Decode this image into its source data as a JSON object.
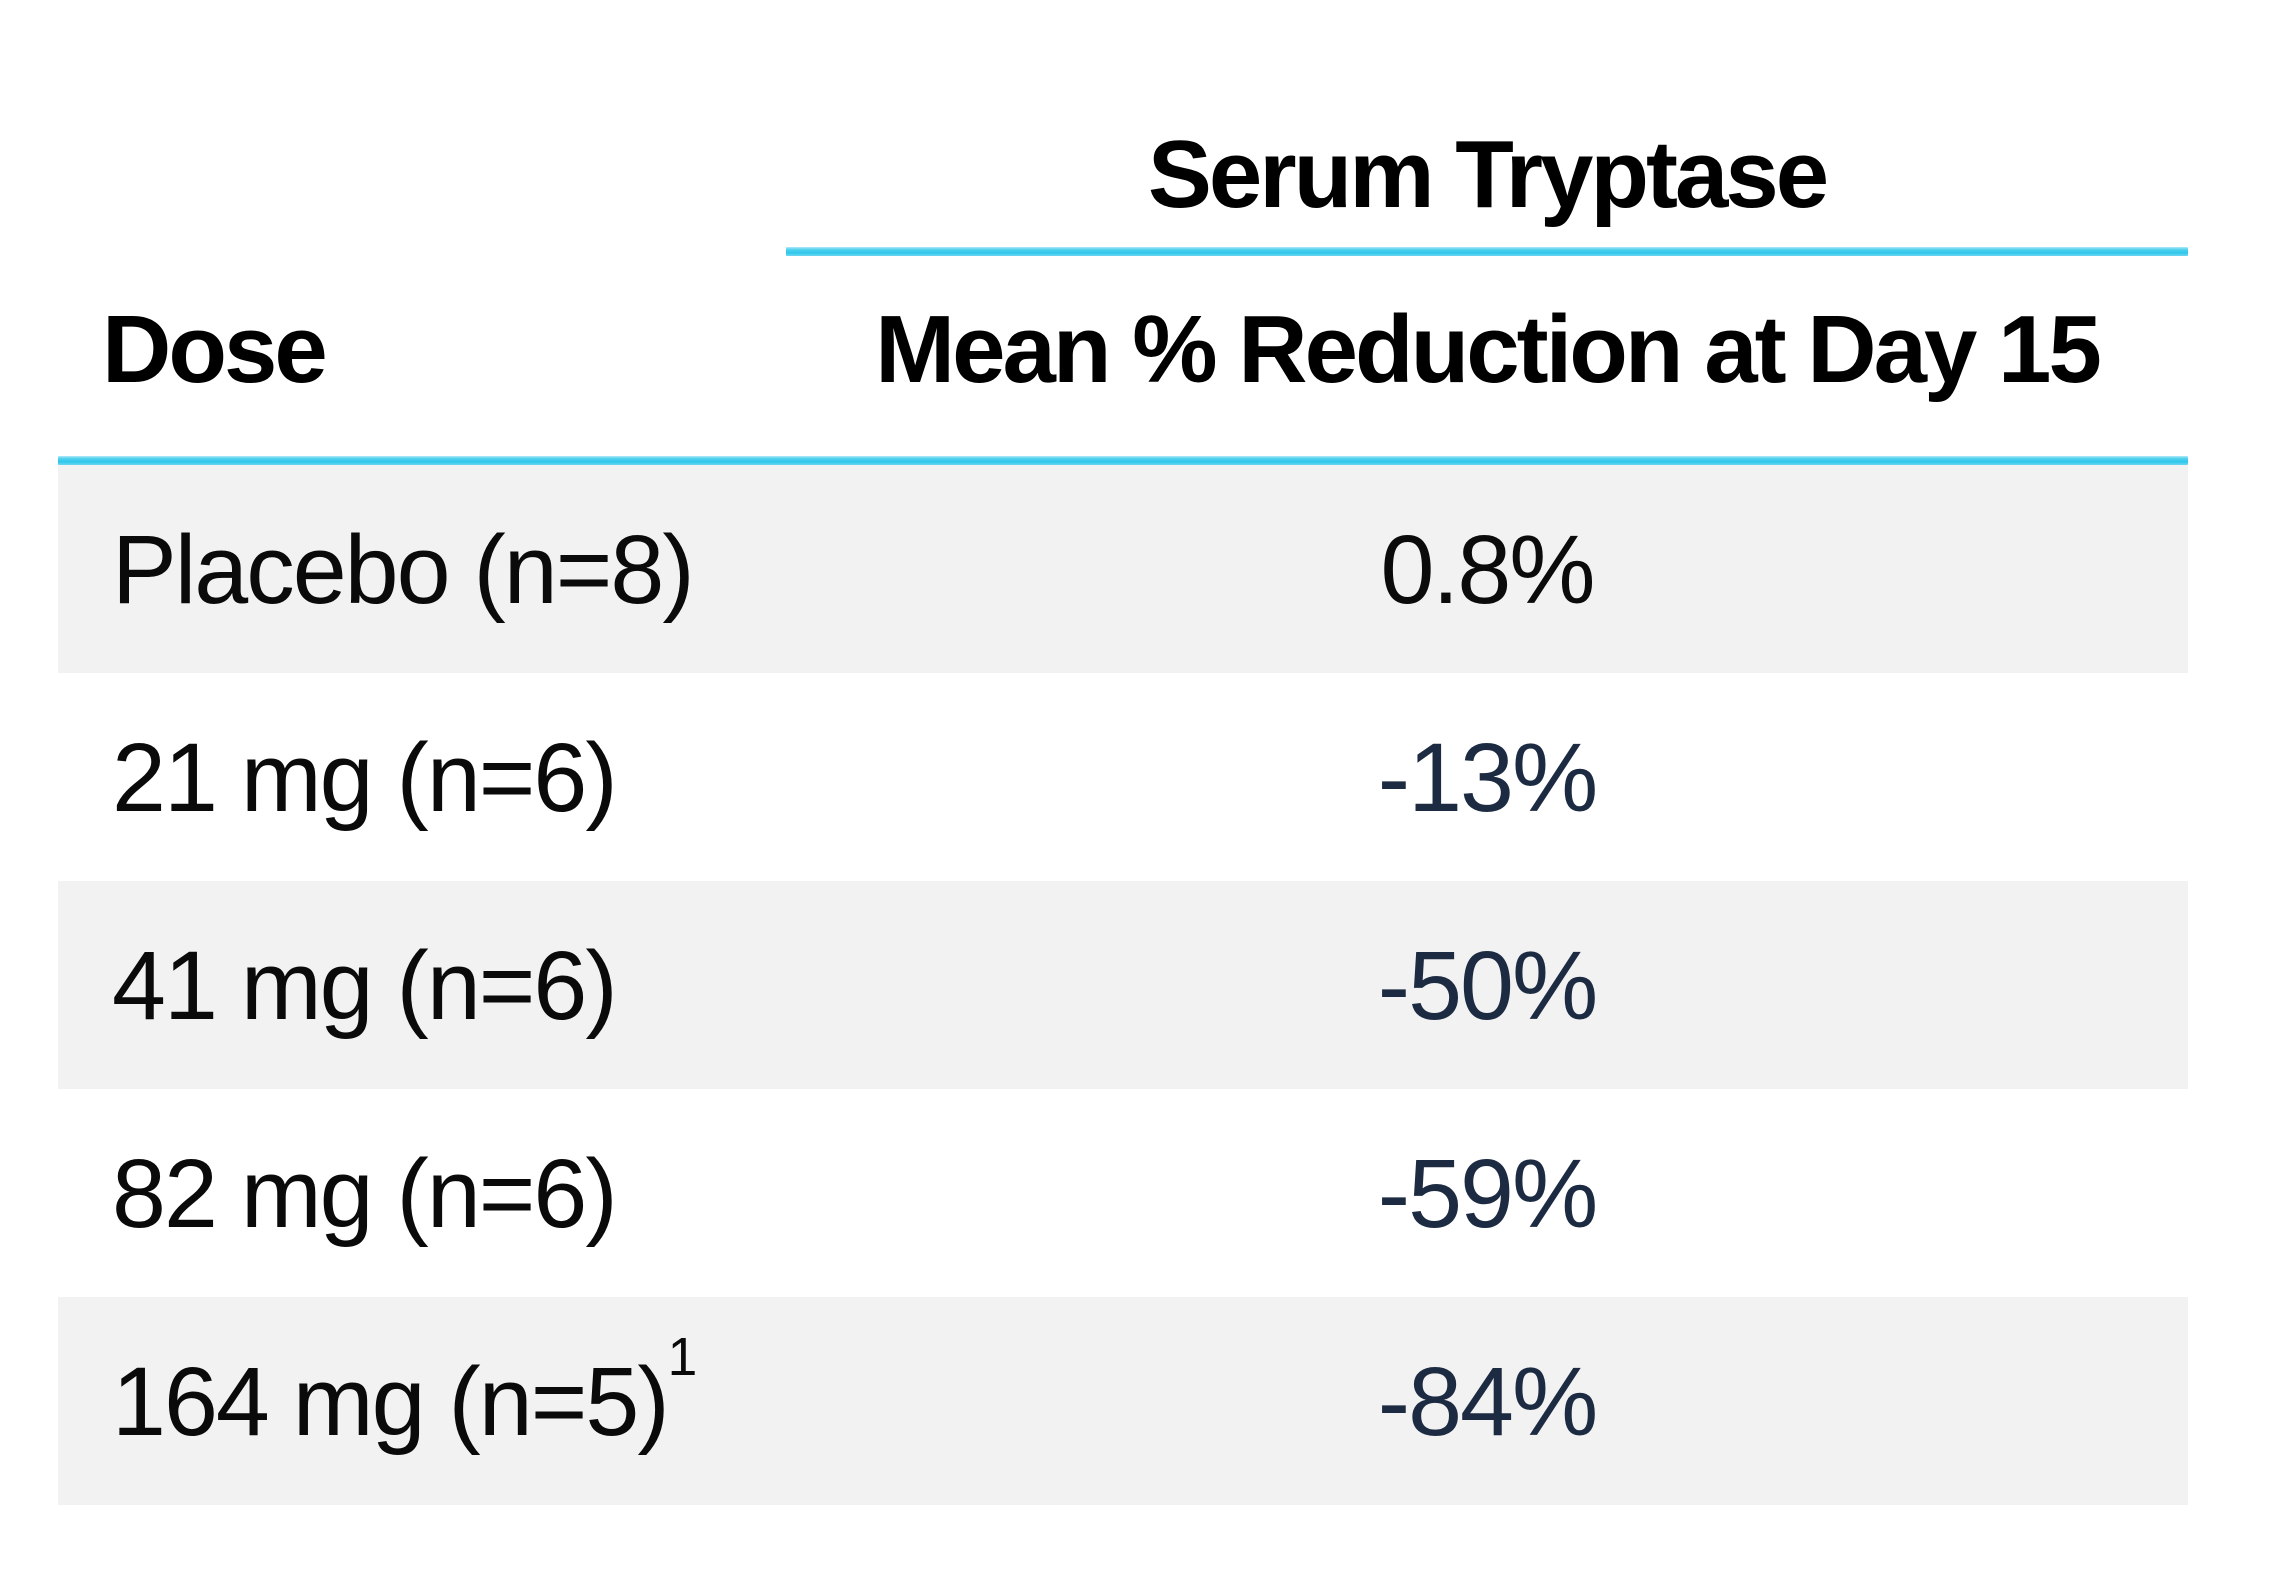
{
  "table": {
    "title": "Serum Tryptase",
    "headers": {
      "dose": "Dose",
      "reduction": "Mean % Reduction at Day 15"
    },
    "rows": [
      {
        "dose": "Placebo (n=8)",
        "sup": "",
        "value": "0.8%",
        "value_color": "#0b0b0b"
      },
      {
        "dose": "21 mg (n=6)",
        "sup": "",
        "value": "-13%",
        "value_color": "#1c2b42"
      },
      {
        "dose": "41 mg (n=6)",
        "sup": "",
        "value": "-50%",
        "value_color": "#1c2b42"
      },
      {
        "dose": "82 mg (n=6)",
        "sup": "",
        "value": "-59%",
        "value_color": "#1c2b42"
      },
      {
        "dose": "164 mg (n=5)",
        "sup": "1",
        "value": "-84%",
        "value_color": "#1c2b42"
      }
    ]
  },
  "colors": {
    "accent_cyan": "#35c8ec",
    "row_shade": "#f2f2f2",
    "value_navy": "#1c2b42",
    "text_black": "#0b0b0b",
    "background": "#ffffff"
  },
  "chart_data": {
    "type": "table",
    "title": "Serum Tryptase",
    "columns": [
      "Dose",
      "Mean % Reduction at Day 15"
    ],
    "rows": [
      [
        "Placebo (n=8)",
        "0.8%"
      ],
      [
        "21 mg (n=6)",
        "-13%"
      ],
      [
        "41 mg (n=6)",
        "-50%"
      ],
      [
        "82 mg (n=6)",
        "-59%"
      ],
      [
        "164 mg (n=5)¹",
        "-84%"
      ]
    ],
    "doses_mg": [
      0,
      21,
      41,
      82,
      164
    ],
    "n_per_group": [
      8,
      6,
      6,
      6,
      5
    ],
    "mean_pct_reduction_day15": [
      0.8,
      -13,
      -50,
      -59,
      -84
    ],
    "shaded_row_indices": [
      0,
      2,
      4
    ],
    "footnote_marker_on_row": 4
  }
}
